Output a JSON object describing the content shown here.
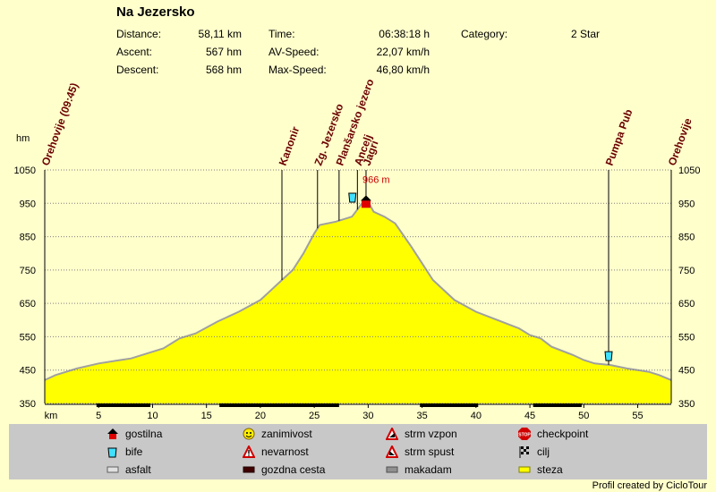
{
  "title": "Na Jezersko",
  "stats": {
    "distance_label": "Distance:",
    "distance_value": "58,11 km",
    "ascent_label": "Ascent:",
    "ascent_value": "567 hm",
    "descent_label": "Descent:",
    "descent_value": "568 hm",
    "time_label": "Time:",
    "time_value": "06:38:18 h",
    "avspeed_label": "AV-Speed:",
    "avspeed_value": "22,07 km/h",
    "maxspeed_label": "Max-Speed:",
    "maxspeed_value": "46,80 km/h",
    "category_label": "Category:",
    "category_value": "2 Star"
  },
  "colors": {
    "fill": "#ffff00",
    "outline": "#a0a0a0",
    "background": "#ffffcc",
    "grid": "#808080",
    "max_label": "#cc0000"
  },
  "chart_data": {
    "type": "area",
    "ylabel": "hm",
    "xlabel": "km",
    "xlim": [
      0,
      58.11
    ],
    "ylim": [
      350,
      1050
    ],
    "yticks": [
      350,
      450,
      550,
      650,
      750,
      850,
      950,
      1050
    ],
    "xticks": [
      5,
      10,
      15,
      20,
      25,
      30,
      35,
      40,
      45,
      50,
      55
    ],
    "grid": true,
    "max_annotation": {
      "x": 29.8,
      "y": 966,
      "label": "966 m"
    },
    "profile": {
      "x": [
        0,
        1,
        3,
        5,
        7,
        8,
        10,
        11,
        12,
        12.5,
        14,
        16,
        18,
        20,
        21,
        22,
        23,
        24,
        25,
        25.5,
        27,
        28.5,
        29.2,
        29.8,
        30.5,
        31.5,
        32.5,
        34,
        36,
        38,
        40,
        42,
        44,
        45,
        46,
        47,
        49,
        50,
        51,
        52.5,
        54,
        56,
        57,
        58.11
      ],
      "y": [
        420,
        435,
        455,
        470,
        480,
        485,
        505,
        515,
        535,
        545,
        560,
        595,
        625,
        660,
        690,
        720,
        750,
        800,
        860,
        885,
        895,
        910,
        940,
        966,
        925,
        910,
        890,
        820,
        720,
        660,
        625,
        600,
        575,
        555,
        545,
        520,
        495,
        480,
        470,
        465,
        455,
        445,
        435,
        420
      ]
    },
    "waypoints": [
      {
        "name": "Orehovije (09:45)",
        "x": 0
      },
      {
        "name": "Kanonir",
        "x": 22
      },
      {
        "name": "Zg. Jezersko",
        "x": 25.3
      },
      {
        "name": "Planšarsko jezero",
        "x": 27.3
      },
      {
        "name": "Ancelj",
        "x": 29
      },
      {
        "name": "Jagri",
        "x": 29.8
      },
      {
        "name": "Pumpa Pub",
        "x": 52.3
      },
      {
        "name": "Orehovije",
        "x": 58.11
      }
    ],
    "surface_segments": [
      [
        4.8,
        9.8
      ],
      [
        16.2,
        27.3
      ],
      [
        34.8,
        40.2
      ],
      [
        45.3,
        49.8
      ]
    ]
  },
  "legend": [
    {
      "icon": "gostilna-icon",
      "label": "gostilna"
    },
    {
      "icon": "zanimivost-icon",
      "label": "zanimivost"
    },
    {
      "icon": "strm-vzpon-icon",
      "label": "strm vzpon"
    },
    {
      "icon": "checkpoint-icon",
      "label": "checkpoint",
      "icon_text": "STOP"
    },
    {
      "icon": "bife-icon",
      "label": "bife"
    },
    {
      "icon": "nevarnost-icon",
      "label": "nevarnost"
    },
    {
      "icon": "strm-spust-icon",
      "label": "strm spust"
    },
    {
      "icon": "cilj-icon",
      "label": "cilj"
    },
    {
      "icon": "asfalt-icon",
      "label": "asfalt"
    },
    {
      "icon": "gozdna-cesta-icon",
      "label": "gozdna cesta"
    },
    {
      "icon": "makadam-icon",
      "label": "makadam"
    },
    {
      "icon": "steza-icon",
      "label": "steza"
    }
  ],
  "credit": "Profil created by CicloTour"
}
